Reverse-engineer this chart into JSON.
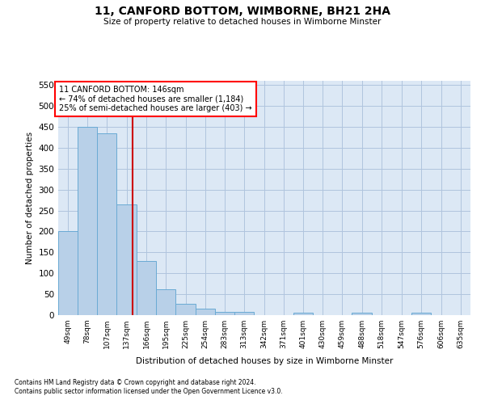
{
  "title": "11, CANFORD BOTTOM, WIMBORNE, BH21 2HA",
  "subtitle": "Size of property relative to detached houses in Wimborne Minster",
  "xlabel": "Distribution of detached houses by size in Wimborne Minster",
  "ylabel": "Number of detached properties",
  "footnote1": "Contains HM Land Registry data © Crown copyright and database right 2024.",
  "footnote2": "Contains public sector information licensed under the Open Government Licence v3.0.",
  "annotation_line1": "11 CANFORD BOTTOM: 146sqm",
  "annotation_line2": "← 74% of detached houses are smaller (1,184)",
  "annotation_line3": "25% of semi-detached houses are larger (403) →",
  "property_size": 146,
  "bar_color": "#b8d0e8",
  "bar_edge_color": "#6aaad4",
  "red_line_color": "#cc0000",
  "background_color": "#ffffff",
  "plot_bg_color": "#dce8f5",
  "grid_color": "#b0c4de",
  "categories": [
    "49sqm",
    "78sqm",
    "107sqm",
    "137sqm",
    "166sqm",
    "195sqm",
    "225sqm",
    "254sqm",
    "283sqm",
    "313sqm",
    "342sqm",
    "371sqm",
    "401sqm",
    "430sqm",
    "459sqm",
    "488sqm",
    "518sqm",
    "547sqm",
    "576sqm",
    "606sqm",
    "635sqm"
  ],
  "bin_edges": [
    34.5,
    63.5,
    92.5,
    121.5,
    151.5,
    180.5,
    209.5,
    239.5,
    268.5,
    297.5,
    326.5,
    356.5,
    385.5,
    414.5,
    443.5,
    472.5,
    502.5,
    531.5,
    561.5,
    590.5,
    620.5,
    649.5
  ],
  "values": [
    200,
    450,
    435,
    265,
    130,
    62,
    28,
    15,
    8,
    8,
    0,
    0,
    6,
    0,
    0,
    5,
    0,
    0,
    5,
    0,
    0
  ],
  "ylim": [
    0,
    560
  ],
  "yticks": [
    0,
    50,
    100,
    150,
    200,
    250,
    300,
    350,
    400,
    450,
    500,
    550
  ]
}
